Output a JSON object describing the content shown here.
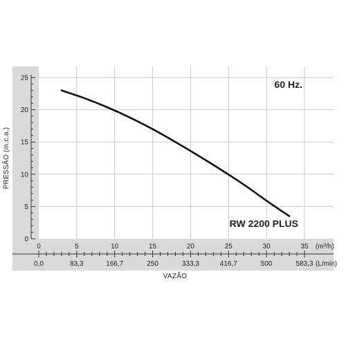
{
  "chart_data": {
    "type": "line",
    "frequency_label": "60 Hz.",
    "xlabel": "VAZÃO",
    "ylabel": "PRESSÃO (m.c.a.)",
    "x_unit": "(m³/h)",
    "x2_unit": "(L/min)",
    "xlim": [
      0,
      35
    ],
    "ylim": [
      0,
      25
    ],
    "x_ticks": [
      0,
      5,
      10,
      15,
      20,
      25,
      30,
      35
    ],
    "x2_ticks": [
      "0,0",
      "83,3",
      "166,7",
      "250",
      "333,3",
      "416,7",
      "500",
      "583,3"
    ],
    "y_ticks": [
      0,
      5,
      10,
      15,
      20,
      25
    ],
    "grid": true,
    "series": [
      {
        "name": "RW 2200 PLUS",
        "color": "#111111",
        "x": [
          3,
          6,
          9,
          12,
          15,
          18,
          21,
          24,
          27,
          30,
          33
        ],
        "y": [
          23.0,
          21.8,
          20.4,
          18.8,
          17.0,
          15.0,
          12.9,
          10.7,
          8.4,
          5.9,
          3.5
        ]
      }
    ]
  },
  "colors": {
    "plot_background": "#ffffff",
    "frame": "#d9d9d9",
    "grid": "#c8c8c8",
    "curve": "#111111"
  }
}
